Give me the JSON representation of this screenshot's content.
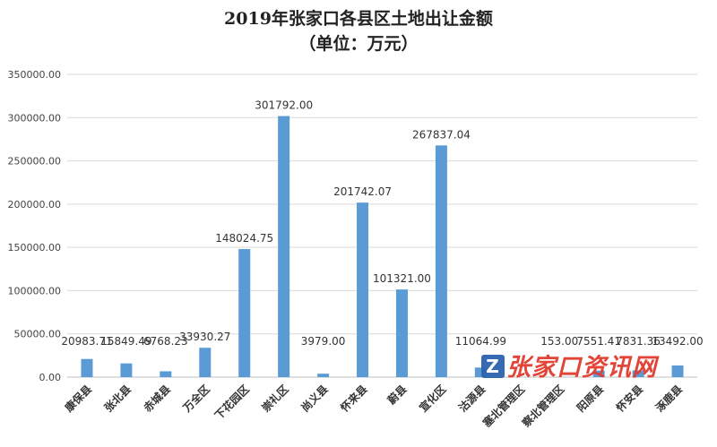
{
  "chart_data": {
    "type": "bar",
    "title": "2019年张家口各县区土地出让金额",
    "subtitle": "（单位：万元）",
    "categories": [
      "康保县",
      "张北县",
      "赤城县",
      "万全区",
      "下花园区",
      "崇礼区",
      "尚义县",
      "怀来县",
      "蔚县",
      "宣化区",
      "沽源县",
      "塞北管理区",
      "察北管理区",
      "阳原县",
      "怀安县",
      "涿鹿县"
    ],
    "values": [
      20983.71,
      15849.49,
      6768.23,
      33930.27,
      148024.75,
      301792.0,
      3979.0,
      201742.07,
      101321.0,
      267837.04,
      11064.99,
      0,
      153.0,
      7551.41,
      7831.36,
      13492.0
    ],
    "data_labels": [
      "20983.71",
      "15849.49",
      "6768.23",
      "33930.27",
      "148024.75",
      "301792.00",
      "3979.00",
      "201742.07",
      "101321.00",
      "267837.04",
      "11064.99",
      "",
      "153.00",
      "7551.41",
      "7831.36",
      "13492.00"
    ],
    "y_ticks": [
      "0.00",
      "50000.00",
      "100000.00",
      "150000.00",
      "200000.00",
      "250000.00",
      "300000.00",
      "350000.00"
    ],
    "ylim": [
      0,
      350000
    ],
    "grid": true,
    "legend": "none",
    "bar_color": "#5b9bd5"
  },
  "watermark": {
    "badge": "Z",
    "text": "张家口资讯网",
    "color": "#e23a2e"
  }
}
